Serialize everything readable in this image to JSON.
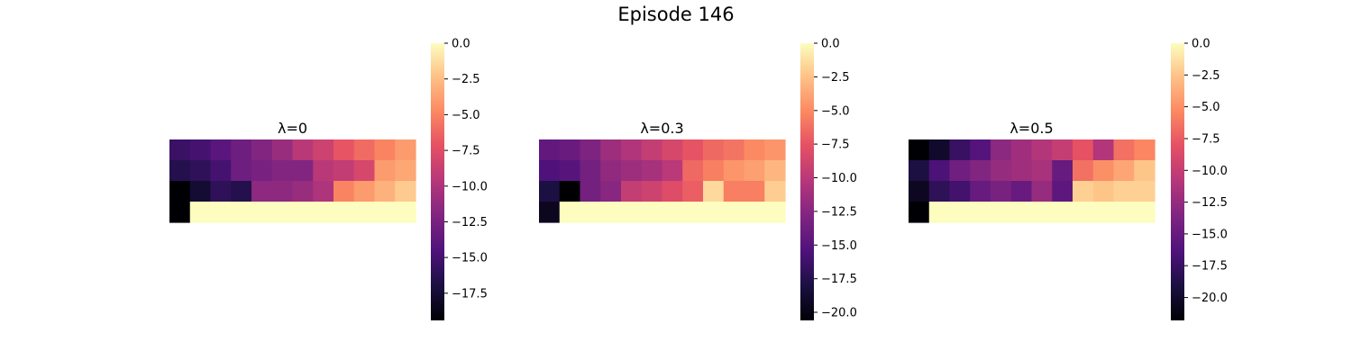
{
  "figure": {
    "title": "Episode 146"
  },
  "chart_data": [
    {
      "type": "heatmap",
      "title": "λ=0",
      "colormap": "magma",
      "vmin": -19.4,
      "vmax": 0,
      "colorbar_ticks": [
        0.0,
        -2.5,
        -5.0,
        -7.5,
        -10.0,
        -12.5,
        -15.0,
        -17.5
      ],
      "colorbar_tick_labels": [
        "0.0",
        "−2.5",
        "−5.0",
        "−7.5",
        "−10.0",
        "−12.5",
        "−15.0",
        "−17.5"
      ],
      "grid": [
        [
          -15.5,
          -15.0,
          -14.0,
          -13.0,
          -12.0,
          -11.0,
          -9.5,
          -8.5,
          -7.0,
          -6.0,
          -5.0,
          -4.0
        ],
        [
          -16.5,
          -16.0,
          -15.0,
          -13.0,
          -12.5,
          -12.0,
          -12.0,
          -9.5,
          -9.0,
          -8.0,
          -4.0,
          -3.5
        ],
        [
          -19.4,
          -17.5,
          -16.0,
          -16.5,
          -11.5,
          -11.5,
          -11.0,
          -10.0,
          -5.0,
          -4.0,
          -3.0,
          -2.0
        ],
        [
          -19.4,
          0,
          0,
          0,
          0,
          0,
          0,
          0,
          0,
          0,
          0,
          0
        ]
      ]
    },
    {
      "type": "heatmap",
      "title": "λ=0.3",
      "colormap": "magma",
      "vmin": -20.6,
      "vmax": 0,
      "colorbar_ticks": [
        0.0,
        -2.5,
        -5.0,
        -7.5,
        -10.0,
        -12.5,
        -15.0,
        -17.5,
        -20.0
      ],
      "colorbar_tick_labels": [
        "0.0",
        "−2.5",
        "−5.0",
        "−7.5",
        "−10.0",
        "−12.5",
        "−15.0",
        "−17.5",
        "−20.0"
      ],
      "grid": [
        [
          -14.5,
          -14.0,
          -13.0,
          -11.5,
          -10.5,
          -9.5,
          -8.5,
          -7.5,
          -6.5,
          -6.0,
          -5.0,
          -4.5
        ],
        [
          -15.5,
          -15.0,
          -13.5,
          -12.0,
          -11.5,
          -11.0,
          -10.0,
          -6.5,
          -5.5,
          -4.5,
          -4.0,
          -3.0
        ],
        [
          -18.0,
          -20.6,
          -13.5,
          -12.5,
          -9.5,
          -9.0,
          -8.0,
          -7.0,
          -1.5,
          -5.5,
          -5.5,
          -2.0
        ],
        [
          -19.5,
          0,
          0,
          0,
          0,
          0,
          0,
          0,
          0,
          0,
          0,
          0
        ]
      ]
    },
    {
      "type": "heatmap",
      "title": "λ=0.5",
      "colormap": "magma",
      "vmin": -21.8,
      "vmax": 0,
      "colorbar_ticks": [
        0.0,
        -2.5,
        -5.0,
        -7.5,
        -10.0,
        -12.5,
        -15.0,
        -17.5,
        -20.0
      ],
      "colorbar_tick_labels": [
        "0.0",
        "−2.5",
        "−5.0",
        "−7.5",
        "−10.0",
        "−12.5",
        "−15.0",
        "−17.5",
        "−20.0"
      ],
      "grid": [
        [
          -21.8,
          -20.0,
          -17.5,
          -16.0,
          -13.0,
          -12.0,
          -11.0,
          -10.0,
          -8.0,
          -11.0,
          -6.5,
          -5.5
        ],
        [
          -19.0,
          -16.5,
          -14.5,
          -13.5,
          -12.5,
          -12.0,
          -11.5,
          -15.0,
          -6.5,
          -5.0,
          -4.0,
          -2.5
        ],
        [
          -20.5,
          -18.0,
          -17.0,
          -15.0,
          -14.0,
          -15.0,
          -12.5,
          -15.5,
          -2.0,
          -2.5,
          -2.0,
          -2.0
        ],
        [
          -21.8,
          0,
          0,
          0,
          0,
          0,
          0,
          0,
          0,
          0,
          0,
          0
        ]
      ]
    }
  ]
}
